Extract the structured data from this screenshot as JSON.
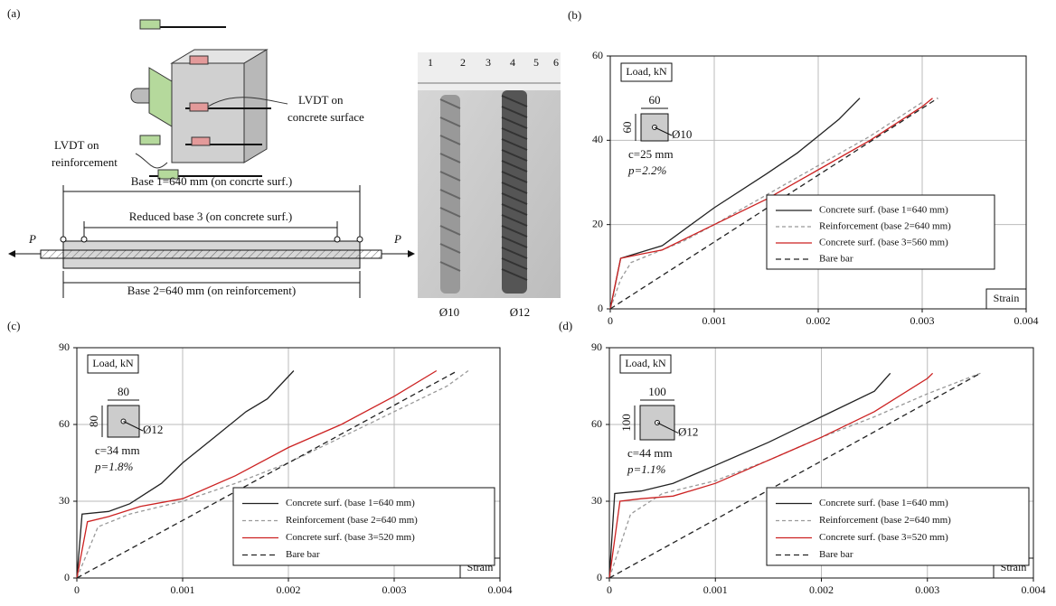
{
  "panel_a": {
    "label": "(a)",
    "lvdt_concrete": [
      "LVDT on",
      "concrete surface"
    ],
    "lvdt_reinforcement": [
      "LVDT on",
      "reinforcement"
    ],
    "base1": "Base 1=640 mm (on concrte surf.)",
    "base3": "Reduced base 3 (on concrete surf.)",
    "base2": "Base 2=640 mm (on reinforcement)",
    "load_left": "P",
    "load_right": "P",
    "ruler": [
      "1",
      "2",
      "3",
      "4",
      "5",
      "6"
    ],
    "bar_labels": [
      "Ø10",
      "Ø12"
    ]
  },
  "chart_data": [
    {
      "type": "line",
      "panel": "(b)",
      "y_label": "Load, kN",
      "x_label": "Strain",
      "xlim": [
        0,
        0.004
      ],
      "xticks": [
        0,
        0.001,
        0.002,
        0.003,
        0.004
      ],
      "ylim": [
        0,
        60
      ],
      "yticks": [
        0,
        20,
        40,
        60
      ],
      "grid": true,
      "legend": "lower right",
      "inset": {
        "width": "60",
        "height": "60",
        "bar": "Ø10",
        "cover": "c=25 mm",
        "ratio": "p=2.2%"
      },
      "series": [
        {
          "name": "Concrete surf. (base 1=640 mm)",
          "color": "#222222",
          "line_style": "solid",
          "x": [
            0,
            0.0001,
            0.0003,
            0.0005,
            0.001,
            0.0015,
            0.0018,
            0.002,
            0.0022,
            0.0024
          ],
          "values": [
            0,
            12,
            13.5,
            15,
            24,
            32,
            37,
            41,
            45,
            50
          ]
        },
        {
          "name": "Reinforcement (base 2=640 mm)",
          "color": "#999999",
          "line_style": "dashed",
          "x": [
            0,
            0.0001,
            0.0002,
            0.0004,
            0.0007,
            0.001,
            0.0015,
            0.002,
            0.0025,
            0.003
          ],
          "values": [
            0,
            7,
            11,
            13,
            16,
            20,
            27,
            34,
            41,
            49
          ]
        },
        {
          "name": "Concrete surf. (base 3=560 mm)",
          "color": "#cc2222",
          "line_style": "solid",
          "x": [
            0,
            0.0001,
            0.0003,
            0.0005,
            0.001,
            0.0015,
            0.002,
            0.0025,
            0.003,
            0.0031
          ],
          "values": [
            0,
            12,
            13,
            14,
            20,
            26,
            33,
            40,
            48,
            50
          ]
        },
        {
          "name": "Bare bar",
          "color": "#222222",
          "line_style": "long-dashed",
          "x": [
            0,
            0.00315
          ],
          "values": [
            0,
            50
          ]
        }
      ]
    },
    {
      "type": "line",
      "panel": "(c)",
      "y_label": "Load, kN",
      "x_label": "Strain",
      "xlim": [
        0,
        0.004
      ],
      "xticks": [
        0,
        0.001,
        0.002,
        0.003,
        0.004
      ],
      "ylim": [
        0,
        90
      ],
      "yticks": [
        0,
        30,
        60,
        90
      ],
      "grid": true,
      "legend": "lower right",
      "inset": {
        "width": "80",
        "height": "80",
        "bar": "Ø12",
        "cover": "c=34 mm",
        "ratio": "p=1.8%"
      },
      "series": [
        {
          "name": "Concrete surf. (base 1=640 mm)",
          "color": "#222222",
          "line_style": "solid",
          "x": [
            0,
            5e-05,
            0.0003,
            0.0005,
            0.0008,
            0.001,
            0.0013,
            0.0016,
            0.0018,
            0.00205
          ],
          "values": [
            0,
            25,
            26,
            29,
            37,
            45,
            55,
            65,
            70,
            81
          ]
        },
        {
          "name": "Reinforcement (base 2=640 mm)",
          "color": "#999999",
          "line_style": "dashed",
          "x": [
            0,
            0.0002,
            0.0005,
            0.001,
            0.0015,
            0.002,
            0.0025,
            0.003,
            0.0035,
            0.0037
          ],
          "values": [
            0,
            20,
            25,
            30,
            37,
            45,
            55,
            65,
            75,
            81
          ]
        },
        {
          "name": "Concrete surf. (base 3=520 mm)",
          "color": "#cc2222",
          "line_style": "solid",
          "x": [
            0,
            0.0001,
            0.0003,
            0.0006,
            0.001,
            0.0015,
            0.002,
            0.0025,
            0.003,
            0.0034
          ],
          "values": [
            0,
            22,
            24,
            28,
            31,
            40,
            51,
            60,
            71,
            81
          ]
        },
        {
          "name": "Bare bar",
          "color": "#222222",
          "line_style": "long-dashed",
          "x": [
            0,
            0.0036
          ],
          "values": [
            0,
            81
          ]
        }
      ]
    },
    {
      "type": "line",
      "panel": "(d)",
      "y_label": "Load, kN",
      "x_label": "Strain",
      "xlim": [
        0,
        0.004
      ],
      "xticks": [
        0,
        0.001,
        0.002,
        0.003,
        0.004
      ],
      "ylim": [
        0,
        90
      ],
      "yticks": [
        0,
        30,
        60,
        90
      ],
      "grid": true,
      "legend": "lower right",
      "inset": {
        "width": "100",
        "height": "100",
        "bar": "Ø12",
        "cover": "c=44 mm",
        "ratio": "p=1.1%"
      },
      "series": [
        {
          "name": "Concrete surf. (base 1=640 mm)",
          "color": "#222222",
          "line_style": "solid",
          "x": [
            0,
            5e-05,
            0.0003,
            0.0006,
            0.001,
            0.0015,
            0.002,
            0.0025,
            0.00265
          ],
          "values": [
            0,
            33,
            34,
            37,
            44,
            53,
            63,
            73,
            80
          ]
        },
        {
          "name": "Reinforcement (base 2=640 mm)",
          "color": "#999999",
          "line_style": "dashed",
          "x": [
            0,
            0.0002,
            0.0005,
            0.001,
            0.0015,
            0.002,
            0.0025,
            0.003,
            0.0035
          ],
          "values": [
            0,
            25,
            33,
            38,
            46,
            55,
            63,
            72,
            80
          ]
        },
        {
          "name": "Concrete surf. (base 3=520 mm)",
          "color": "#cc2222",
          "line_style": "solid",
          "x": [
            0,
            0.0001,
            0.0003,
            0.0006,
            0.001,
            0.0015,
            0.002,
            0.0025,
            0.003,
            0.00305
          ],
          "values": [
            0,
            30,
            31,
            32,
            37,
            46,
            55,
            65,
            78,
            80
          ]
        },
        {
          "name": "Bare bar",
          "color": "#222222",
          "line_style": "long-dashed",
          "x": [
            0,
            0.0035
          ],
          "values": [
            0,
            80
          ]
        }
      ]
    }
  ]
}
